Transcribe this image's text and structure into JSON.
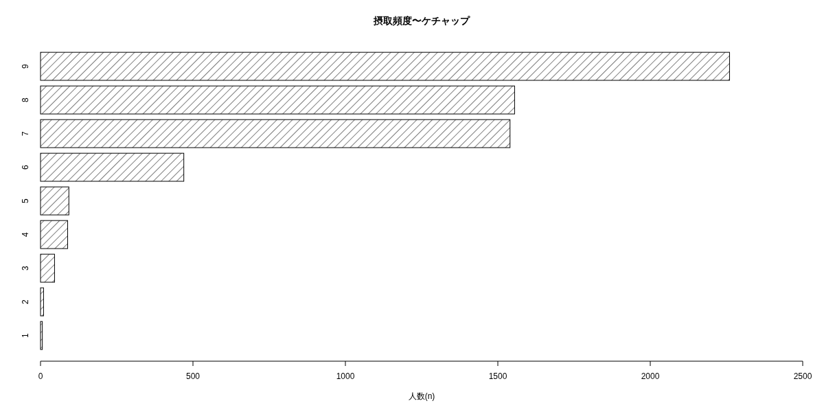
{
  "chart_data": {
    "type": "bar",
    "orientation": "horizontal",
    "title": "摂取頻度〜ケチャップ",
    "xlabel": "人数(n)",
    "categories": [
      "9",
      "8",
      "7",
      "6",
      "5",
      "4",
      "3",
      "2",
      "1"
    ],
    "values": [
      2260,
      1555,
      1540,
      470,
      93,
      89,
      46,
      10,
      6
    ],
    "color": "#000000",
    "xlim": [
      0,
      2500
    ],
    "xticks": [
      0,
      500,
      1000,
      1500,
      2000,
      2500
    ]
  }
}
